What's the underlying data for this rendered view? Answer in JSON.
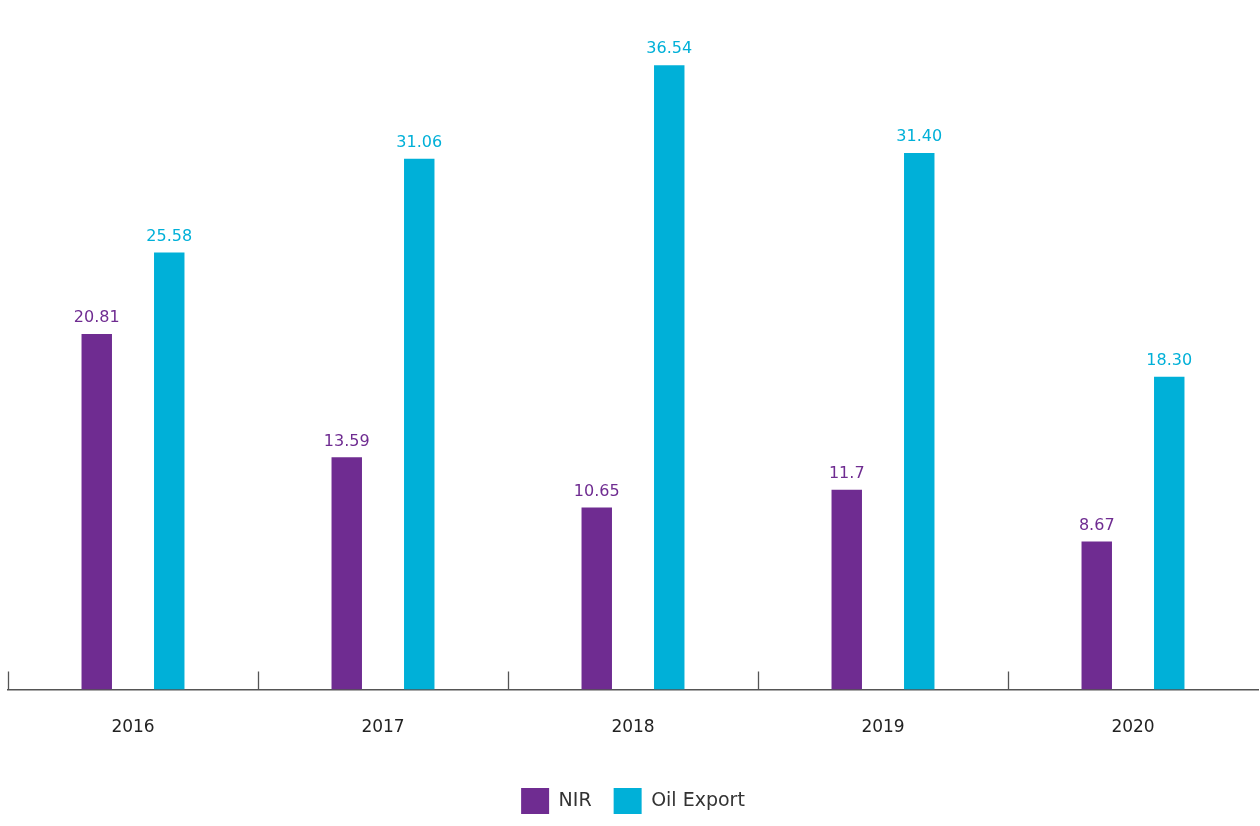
{
  "chart_data": {
    "type": "bar",
    "categories": [
      "2016",
      "2017",
      "2018",
      "2019",
      "2020"
    ],
    "series": [
      {
        "name": "NIR",
        "color": "#6f2c91",
        "values": [
          20.81,
          13.59,
          10.65,
          11.7,
          8.67
        ],
        "value_labels": [
          "20.81",
          "13.59",
          "10.65",
          "11.7",
          "8.67"
        ]
      },
      {
        "name": "Oil Export",
        "color": "#00b0d8",
        "values": [
          25.58,
          31.06,
          36.54,
          31.4,
          18.3
        ],
        "value_labels": [
          "25.58",
          "31.06",
          "36.54",
          "31.40",
          "18.30"
        ]
      }
    ],
    "legend": "bottom",
    "grid": false
  }
}
